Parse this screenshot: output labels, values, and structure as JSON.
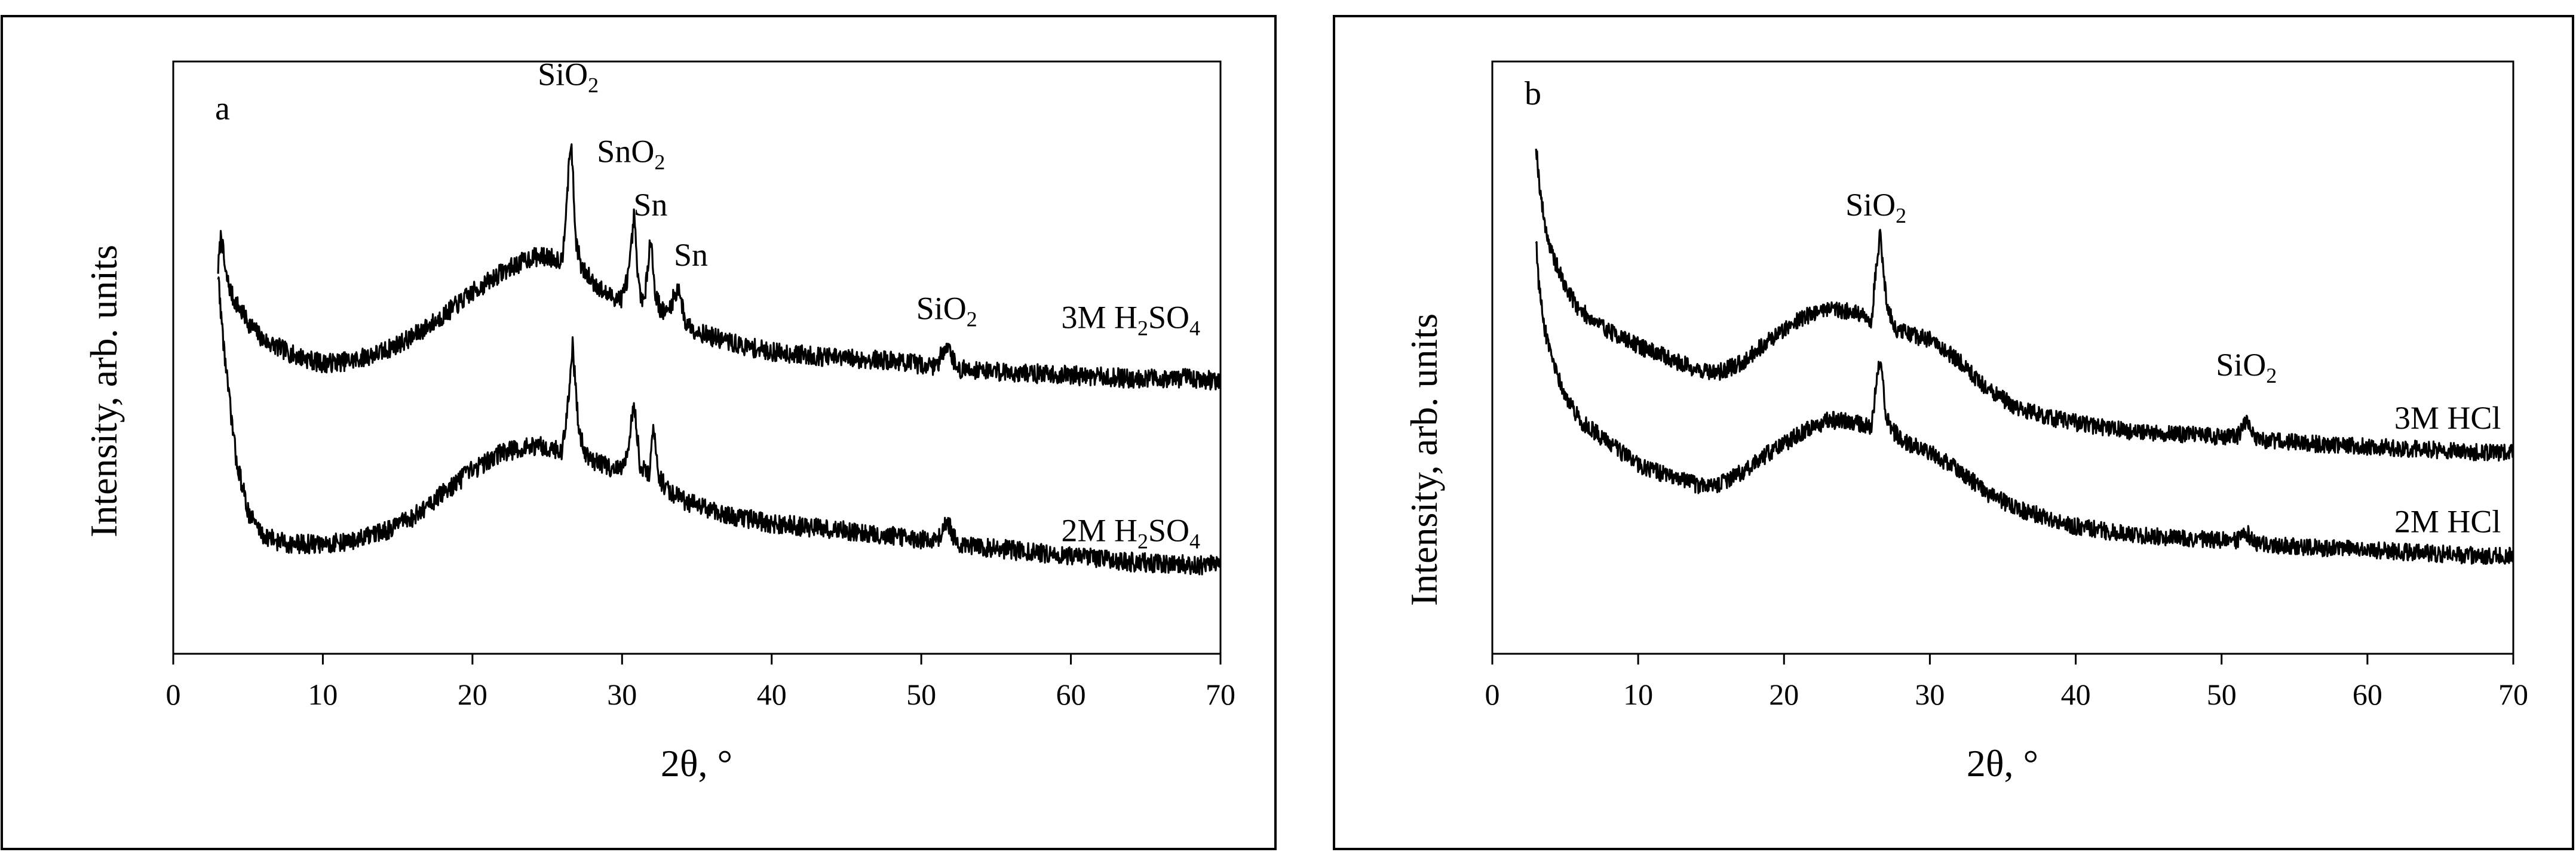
{
  "chart_data": [
    {
      "type": "line",
      "panel_label": "a",
      "xlabel": "2θ, °",
      "ylabel": "Intensity, arb. units",
      "xlim": [
        0,
        70
      ],
      "ylim": [
        0,
        100
      ],
      "x_ticks": [
        "0",
        "10",
        "20",
        "30",
        "40",
        "50",
        "60",
        "70"
      ],
      "y_ticks": [],
      "series": [
        {
          "name": "3M H2SO4",
          "label_main": "3M H",
          "label_sub1": "2",
          "label_mid": "SO",
          "label_sub2": "4",
          "label_x": 64,
          "label_y": 55,
          "noise": 0.9,
          "x": [
            3,
            3.2,
            3.5,
            4,
            5,
            6,
            8,
            10,
            12,
            14,
            16,
            18,
            20,
            22,
            24,
            25,
            26,
            26.3,
            26.6,
            26.9,
            27.3,
            28,
            29,
            30,
            30.5,
            30.8,
            31.1,
            31.5,
            31.9,
            32.2,
            32.6,
            33,
            33.8,
            34.2,
            35,
            36,
            38,
            40,
            44,
            48,
            51,
            51.7,
            52.4,
            54,
            56,
            60,
            64,
            68,
            70
          ],
          "y": [
            65,
            71,
            64,
            60,
            56,
            53,
            50.5,
            49,
            49.5,
            51,
            53.5,
            57,
            61,
            64.5,
            67,
            67,
            66.5,
            77,
            87,
            70,
            65,
            63,
            60.5,
            60,
            65,
            74,
            62,
            59,
            71,
            61,
            58,
            57.5,
            62,
            56,
            54.5,
            53.5,
            52,
            51,
            50,
            49.5,
            48.5,
            52.5,
            48,
            48,
            47.5,
            47,
            46.5,
            46.5,
            46
          ]
        },
        {
          "name": "2M H2SO4",
          "label_main": "2M H",
          "label_sub1": "2",
          "label_mid": "SO",
          "label_sub2": "4",
          "label_x": 64,
          "label_y": 19,
          "noise": 0.9,
          "x": [
            3,
            3.3,
            3.7,
            4.2,
            5,
            6,
            7,
            8,
            10,
            12,
            14,
            16,
            18,
            20,
            22,
            24,
            25,
            26,
            26.4,
            26.7,
            27.1,
            27.6,
            28.5,
            30,
            30.5,
            30.8,
            31.2,
            31.8,
            32.1,
            32.5,
            33,
            34,
            36,
            40,
            44,
            48,
            51,
            51.7,
            52.4,
            56,
            60,
            64,
            68,
            70
          ],
          "y": [
            64,
            54,
            44,
            33,
            24,
            20,
            19,
            18.5,
            18.5,
            19,
            20.5,
            23,
            27,
            31,
            34,
            35,
            35,
            34,
            43,
            52,
            38,
            33.5,
            32,
            31,
            36,
            43,
            32,
            30,
            38,
            29.5,
            28,
            26,
            24,
            22,
            21,
            20,
            19,
            22.5,
            18.5,
            17.5,
            16.5,
            15.5,
            15,
            15
          ]
        }
      ],
      "annotations": [
        {
          "base": "SiO",
          "sub": "2",
          "x": 26.4,
          "y": 96
        },
        {
          "base": "SnO",
          "sub": "2",
          "x": 30.6,
          "y": 83
        },
        {
          "base": "Sn",
          "sub": "",
          "x": 31.9,
          "y": 74
        },
        {
          "base": "Sn",
          "sub": "",
          "x": 34.6,
          "y": 65.5
        },
        {
          "base": "SiO",
          "sub": "2",
          "x": 51.7,
          "y": 56.5
        }
      ]
    },
    {
      "type": "line",
      "panel_label": "b",
      "xlabel": "2θ, °",
      "ylabel": "Intensity, arb. units",
      "xlim": [
        0,
        70
      ],
      "ylim": [
        0,
        100
      ],
      "x_ticks": [
        "0",
        "10",
        "20",
        "30",
        "40",
        "50",
        "60",
        "70"
      ],
      "y_ticks": [],
      "series": [
        {
          "name": "3M HCl",
          "label_main": "3M HCl",
          "label_sub1": "",
          "label_mid": "",
          "label_sub2": "",
          "label_x": 65.5,
          "label_y": 38,
          "noise": 0.8,
          "x": [
            3,
            3.2,
            3.5,
            4,
            5,
            6,
            8,
            10,
            12,
            14,
            15.5,
            17,
            19,
            21,
            23,
            25,
            26,
            26.3,
            26.6,
            27,
            27.5,
            28.5,
            30,
            32,
            34,
            36,
            38,
            40,
            44,
            48,
            51,
            51.7,
            52.4,
            56,
            60,
            64,
            68,
            70
          ],
          "y": [
            86,
            80,
            74,
            68,
            62,
            58,
            54.5,
            52,
            50,
            48,
            47.5,
            49,
            53,
            56.5,
            58.5,
            57.5,
            56,
            65,
            71,
            60,
            55,
            54,
            53,
            49.5,
            44.5,
            41.5,
            40,
            39,
            37.5,
            37,
            36.5,
            39,
            36,
            35.5,
            35,
            34.5,
            34,
            34
          ]
        },
        {
          "name": "2M HCl",
          "label_main": "2M HCl",
          "label_sub1": "",
          "label_mid": "",
          "label_sub2": "",
          "label_x": 65.5,
          "label_y": 20.5,
          "noise": 0.8,
          "x": [
            3,
            3.2,
            3.5,
            4,
            5,
            6,
            8,
            10,
            12,
            14,
            15.5,
            17,
            19,
            21,
            23,
            25,
            26,
            26.3,
            26.6,
            27,
            27.5,
            28.5,
            30,
            32,
            34,
            36,
            38,
            40,
            44,
            48,
            51,
            51.7,
            52.4,
            56,
            60,
            64,
            68,
            70
          ],
          "y": [
            70,
            62,
            56,
            50,
            43.5,
            39.5,
            35.5,
            32,
            30,
            28.5,
            28.5,
            30.5,
            34,
            37,
            39.5,
            39,
            38.5,
            45,
            50,
            40,
            37.5,
            35.5,
            34,
            31,
            27,
            24.5,
            23,
            21.5,
            20,
            19.5,
            19,
            20.5,
            18.5,
            18,
            17.5,
            17,
            16.5,
            16.5
          ]
        }
      ],
      "annotations": [
        {
          "base": "SiO",
          "sub": "2",
          "x": 26.3,
          "y": 74
        },
        {
          "base": "SiO",
          "sub": "2",
          "x": 51.7,
          "y": 47
        }
      ]
    }
  ]
}
